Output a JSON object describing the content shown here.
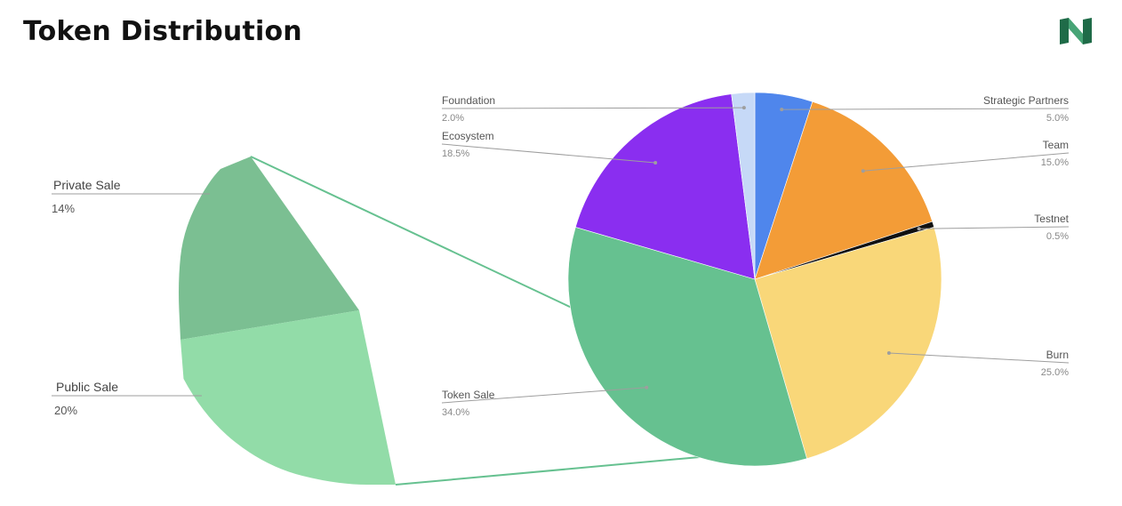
{
  "title": "Token Distribution",
  "colors": {
    "strategic": "#4f86ec",
    "team": "#f39c37",
    "testnet": "#111111",
    "burn": "#f9d779",
    "token_sale": "#66c190",
    "ecosystem": "#8a2ef0",
    "foundation": "#c6d9f7",
    "private_sale": "#7bbf92",
    "public_sale": "#92dca8",
    "connector": "#66c190",
    "leader": "#9e9e9e",
    "logo_dark": "#1f6b48",
    "logo_light": "#47a476"
  },
  "chart_data": [
    {
      "type": "pie",
      "title": "",
      "slices": [
        {
          "label": "Strategic Partners",
          "value": 5.0,
          "value_text": "5.0%",
          "color_key": "strategic"
        },
        {
          "label": "Team",
          "value": 15.0,
          "value_text": "15.0%",
          "color_key": "team"
        },
        {
          "label": "Testnet",
          "value": 0.5,
          "value_text": "0.5%",
          "color_key": "testnet"
        },
        {
          "label": "Burn",
          "value": 25.0,
          "value_text": "25.0%",
          "color_key": "burn"
        },
        {
          "label": "Token Sale",
          "value": 34.0,
          "value_text": "34.0%",
          "color_key": "token_sale"
        },
        {
          "label": "Ecosystem",
          "value": 18.5,
          "value_text": "18.5%",
          "color_key": "ecosystem"
        },
        {
          "label": "Foundation",
          "value": 2.0,
          "value_text": "2.0%",
          "color_key": "foundation"
        }
      ],
      "start": "top",
      "direction": "clockwise"
    },
    {
      "type": "pie",
      "title": "",
      "breakdown_of": "Token Sale",
      "slices": [
        {
          "label": "Private Sale",
          "value": 14,
          "value_text": "14%",
          "color_key": "private_sale"
        },
        {
          "label": "Public Sale",
          "value": 20,
          "value_text": "20%",
          "color_key": "public_sale"
        }
      ]
    }
  ]
}
